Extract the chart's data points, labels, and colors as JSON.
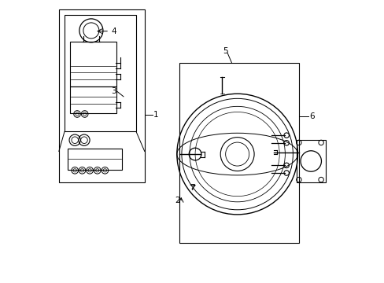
{
  "background_color": "#ffffff",
  "line_color": "#000000",
  "fig_width": 4.89,
  "fig_height": 3.6,
  "dpi": 100,
  "label_fontsize": 7.5
}
